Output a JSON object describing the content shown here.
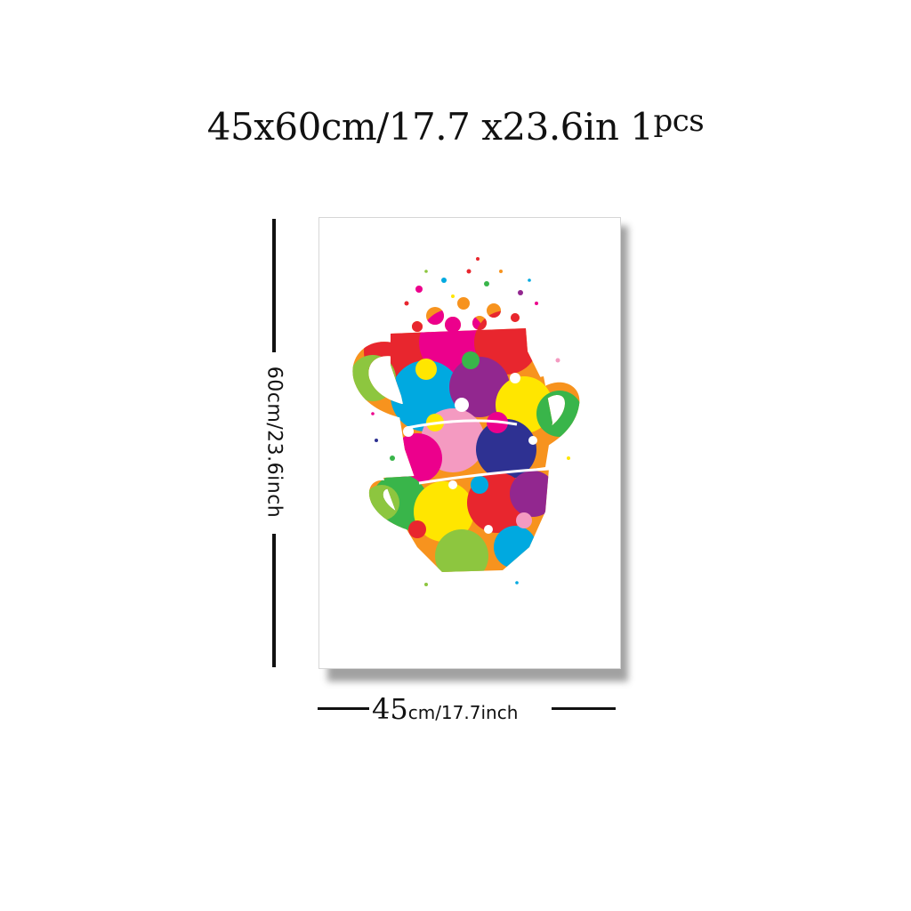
{
  "header": {
    "size_text": "45x60cm/17.7 x23.6in",
    "qty_text": "1",
    "qty_unit": "pcs"
  },
  "dimensions": {
    "height_label": "60cm/23.6inch",
    "width_big": "45",
    "width_small": "cm/17.7inch"
  },
  "artwork": {
    "subject": "stacked-teacups-watercolor-splash",
    "palette": [
      "#e8262e",
      "#f7931e",
      "#ffe600",
      "#39b54a",
      "#8dc63f",
      "#00a9e0",
      "#2e3192",
      "#92278f",
      "#ec008c",
      "#f49ac1"
    ]
  }
}
